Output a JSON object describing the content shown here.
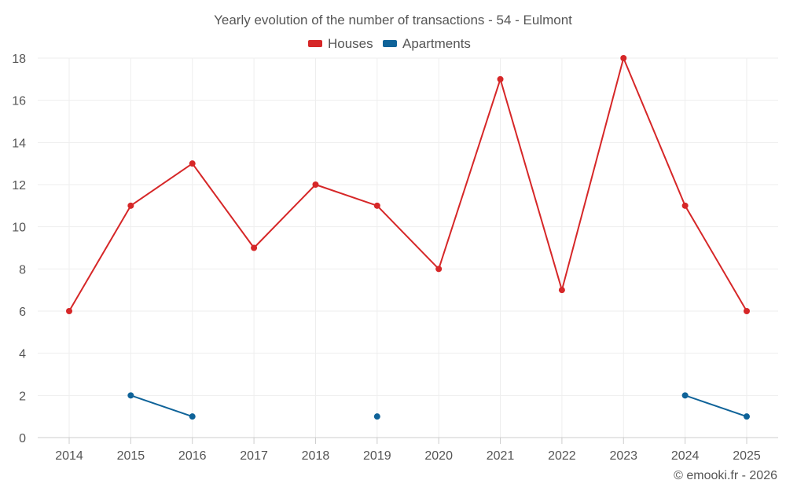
{
  "chart_data": {
    "type": "line",
    "title": "Yearly evolution of the number of transactions - 54 - Eulmont",
    "xlabel": "",
    "ylabel": "",
    "categories": [
      "2014",
      "2015",
      "2016",
      "2017",
      "2018",
      "2019",
      "2020",
      "2021",
      "2022",
      "2023",
      "2024",
      "2025"
    ],
    "ylim": [
      0,
      18
    ],
    "yticks": [
      0,
      2,
      4,
      6,
      8,
      10,
      12,
      14,
      16,
      18
    ],
    "grid": true,
    "legend_position": "top-center",
    "series": [
      {
        "name": "Houses",
        "color": "#d62728",
        "values": [
          6,
          11,
          13,
          9,
          12,
          11,
          8,
          17,
          7,
          18,
          11,
          6
        ]
      },
      {
        "name": "Apartments",
        "color": "#0f6399",
        "values": [
          null,
          2,
          1,
          null,
          null,
          1,
          null,
          null,
          null,
          null,
          2,
          1
        ]
      }
    ]
  },
  "credit": "© emooki.fr - 2026"
}
